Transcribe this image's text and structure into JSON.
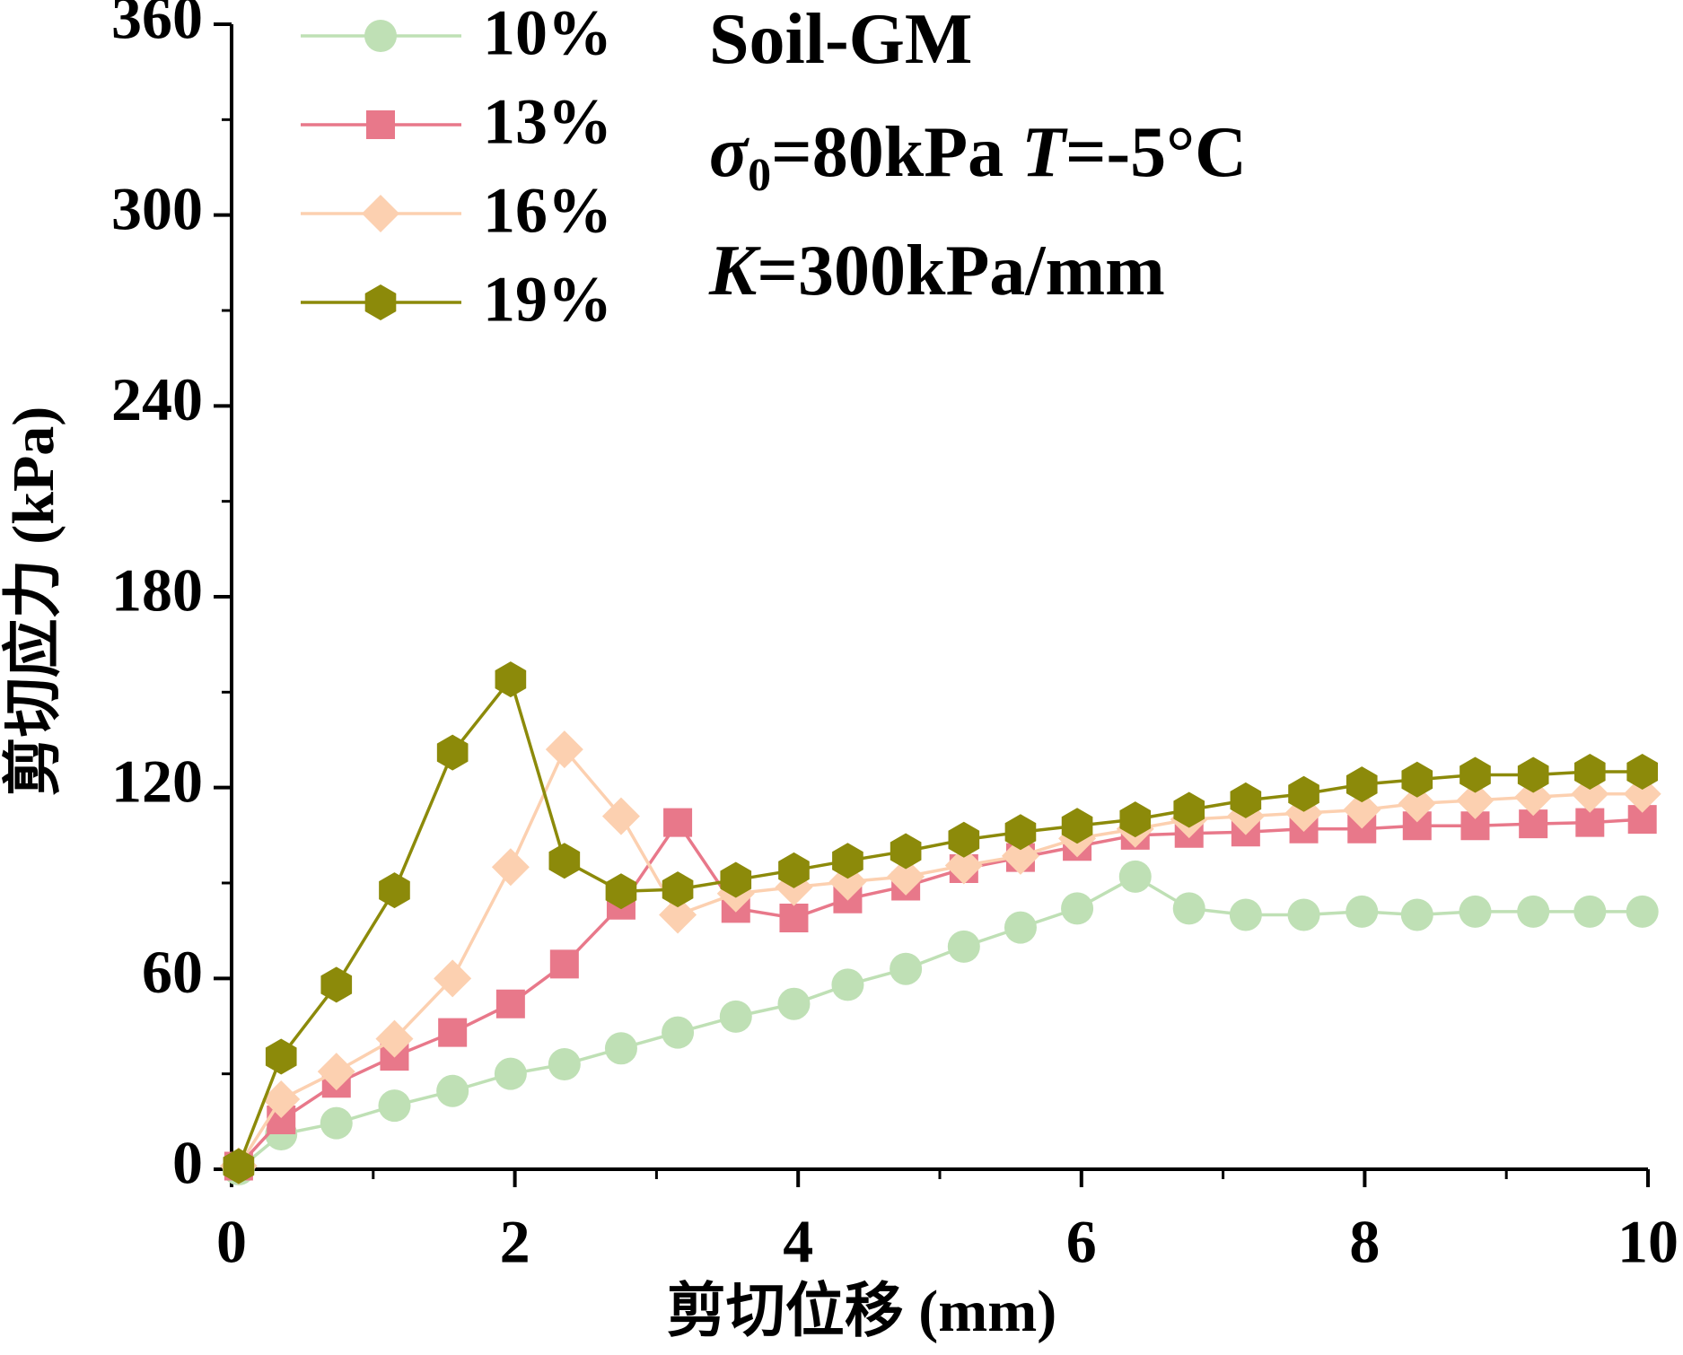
{
  "chart_data": {
    "type": "line",
    "xlabel": "剪切位移 (mm)",
    "ylabel": "剪切应力 (kPa)",
    "annotations": [
      [
        {
          "text": "Soil-GM"
        }
      ],
      [
        {
          "text": "σ",
          "italic": true
        },
        {
          "text": "0",
          "sub": true
        },
        {
          "text": "=80kPa  "
        },
        {
          "text": "T",
          "italic": true
        },
        {
          "text": "=-5°C"
        }
      ],
      [
        {
          "text": "K",
          "italic": true
        },
        {
          "text": "=300kPa/mm"
        }
      ]
    ],
    "xlim": [
      0,
      10
    ],
    "xticks": [
      0,
      2,
      4,
      6,
      8,
      10
    ],
    "xticks_minor": [
      1,
      3,
      5,
      7,
      9
    ],
    "ylim": [
      0,
      360
    ],
    "yticks": [
      0,
      60,
      120,
      180,
      240,
      300,
      360
    ],
    "yticks_minor": [
      30,
      90,
      150,
      210,
      270,
      330
    ],
    "legend": "upper left",
    "x": [
      0.05,
      0.35,
      0.74,
      1.15,
      1.56,
      1.97,
      2.35,
      2.75,
      3.15,
      3.56,
      3.97,
      4.35,
      4.76,
      5.17,
      5.57,
      5.97,
      6.38,
      6.76,
      7.16,
      7.57,
      7.98,
      8.37,
      8.78,
      9.19,
      9.59,
      9.96
    ],
    "series": [
      {
        "name": "10%",
        "color": "#bfe0b5",
        "marker": "circle",
        "values": [
          0,
          11,
          14.5,
          20,
          24.6,
          30,
          33,
          38,
          43,
          48,
          52,
          58,
          63,
          70,
          76,
          82,
          92,
          82,
          80,
          80,
          81,
          80,
          81,
          81,
          81,
          81
        ]
      },
      {
        "name": "13%",
        "color": "#e8788a",
        "marker": "square",
        "values": [
          1,
          15.5,
          27,
          35.5,
          43,
          52,
          64.5,
          83,
          109,
          82,
          79,
          85,
          89,
          94.5,
          98,
          101.5,
          105,
          105.6,
          106,
          107,
          107,
          108,
          108,
          108.6,
          109,
          110
        ]
      },
      {
        "name": "16%",
        "color": "#fcd0b0",
        "marker": "diamond",
        "values": [
          1,
          22,
          30.7,
          41,
          60,
          95,
          132,
          111,
          80,
          86.7,
          88.7,
          90.4,
          92,
          95.5,
          98.5,
          104,
          107,
          110,
          111,
          112,
          113,
          115,
          116,
          117,
          118,
          118
        ]
      },
      {
        "name": "19%",
        "color": "#8c8a0a",
        "marker": "hexagon",
        "values": [
          1,
          35.4,
          58,
          87.7,
          131,
          154,
          97,
          87.4,
          88,
          91,
          94,
          97,
          100,
          103.6,
          106,
          108,
          110,
          113,
          116,
          118,
          121,
          122.5,
          124,
          124,
          125,
          125
        ]
      }
    ]
  }
}
